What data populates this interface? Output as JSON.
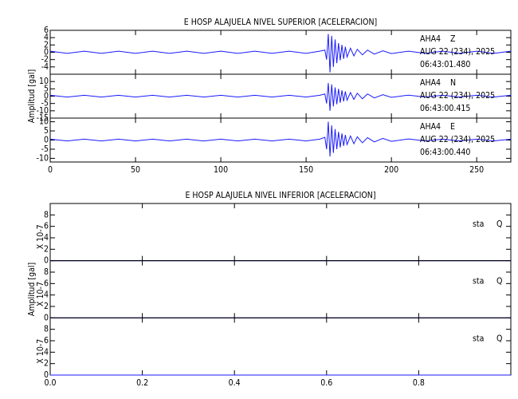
{
  "chart_data": [
    {
      "type": "seismogram",
      "title": "E HOSP ALAJUELA NIVEL SUPERIOR [ACELERACION]",
      "ylabel": "Amplitud [gal]",
      "xlim": [
        0,
        270
      ],
      "xticks": [
        0,
        50,
        100,
        150,
        200,
        250
      ],
      "panels": [
        {
          "station": "AHA4",
          "component": "Z",
          "date": "AUG 22 (234), 2025",
          "time": "06:43:01.480",
          "color": "#1a1aff",
          "ylim": [
            -6,
            6
          ],
          "yticks": [
            -4,
            -2,
            0,
            2,
            4,
            6
          ],
          "x": [
            0,
            10,
            20,
            30,
            40,
            50,
            60,
            70,
            80,
            90,
            100,
            110,
            120,
            130,
            140,
            150,
            158,
            161,
            162,
            163,
            164,
            165,
            166,
            167,
            168,
            169,
            170,
            171,
            172,
            173,
            174,
            176,
            178,
            180,
            183,
            186,
            190,
            195,
            200,
            210,
            220,
            230,
            240,
            250,
            260,
            270
          ],
          "values": [
            0.3,
            -0.3,
            0.3,
            -0.3,
            0.3,
            -0.3,
            0.3,
            -0.3,
            0.3,
            -0.3,
            0.3,
            -0.3,
            0.3,
            -0.3,
            0.3,
            -0.3,
            0.3,
            0.6,
            -2,
            5,
            -5.5,
            4.5,
            -4,
            3.5,
            -3,
            2.5,
            -2.2,
            2,
            -1.8,
            1.5,
            -1.3,
            1.1,
            -1,
            0.8,
            -0.7,
            0.6,
            -0.5,
            0.4,
            -0.35,
            0.3,
            -0.3,
            0.3,
            -0.3,
            0.3,
            -0.3,
            0.3
          ]
        },
        {
          "station": "AHA4",
          "component": "N",
          "date": "AUG 22 (234), 2025",
          "time": "06:43:00.415",
          "color": "#1a1aff",
          "ylim": [
            -15,
            15
          ],
          "yticks": [
            -15,
            -10,
            -5,
            0,
            5,
            10
          ],
          "x": [
            0,
            10,
            20,
            30,
            40,
            50,
            60,
            70,
            80,
            90,
            100,
            110,
            120,
            130,
            140,
            150,
            158,
            161,
            162,
            163,
            164,
            165,
            166,
            167,
            168,
            169,
            170,
            171,
            172,
            173,
            174,
            176,
            178,
            180,
            183,
            186,
            190,
            195,
            200,
            210,
            220,
            230,
            240,
            250,
            260,
            270
          ],
          "values": [
            0.6,
            -0.6,
            0.6,
            -0.6,
            0.6,
            -0.6,
            0.6,
            -0.6,
            0.6,
            -0.6,
            0.6,
            -0.6,
            0.6,
            -0.6,
            0.6,
            -0.6,
            0.6,
            1.5,
            -5,
            9,
            -10,
            8,
            -7,
            6,
            -5.5,
            5,
            -4.5,
            4,
            -3.6,
            3.2,
            -2.8,
            2.5,
            -2.2,
            2,
            -1.8,
            1.5,
            -1.2,
            1,
            -0.8,
            0.7,
            -0.6,
            0.6,
            -0.6,
            0.6,
            -0.6,
            0.6
          ]
        },
        {
          "station": "AHA4",
          "component": "E",
          "date": "AUG 22 (234), 2025",
          "time": "06:43:00.440",
          "color": "#1a1aff",
          "ylim": [
            -12,
            12
          ],
          "yticks": [
            -10,
            -5,
            0,
            5,
            10
          ],
          "x": [
            0,
            10,
            20,
            30,
            40,
            50,
            60,
            70,
            80,
            90,
            100,
            110,
            120,
            130,
            140,
            150,
            158,
            161,
            162,
            163,
            164,
            165,
            166,
            167,
            168,
            169,
            170,
            171,
            172,
            173,
            174,
            176,
            178,
            180,
            183,
            186,
            190,
            195,
            200,
            210,
            220,
            230,
            240,
            250,
            260,
            270
          ],
          "values": [
            0.5,
            -0.5,
            0.5,
            -0.5,
            0.5,
            -0.5,
            0.5,
            -0.5,
            0.5,
            -0.5,
            0.5,
            -0.5,
            0.5,
            -0.5,
            0.5,
            -0.5,
            0.5,
            1.5,
            -5,
            10,
            -9,
            8,
            -7,
            6,
            -5,
            4.5,
            -4,
            3.6,
            -3.2,
            2.8,
            -2.5,
            2.2,
            -2,
            1.8,
            -1.5,
            1.3,
            -1,
            0.9,
            -0.7,
            0.6,
            -0.5,
            0.5,
            -0.5,
            0.5,
            -0.5,
            0.5
          ]
        }
      ]
    },
    {
      "type": "seismogram",
      "title": "E HOSP ALAJUELA NIVEL INFERIOR [ACELERACION]",
      "ylabel": "Amplitud [gal]",
      "xlim": [
        0,
        1
      ],
      "xticks": [
        {
          "value": 0,
          "label": "0.0"
        },
        0.2,
        0.4,
        0.6,
        0.8
      ],
      "panels": [
        {
          "station": "sta",
          "component": "Q",
          "scale": "X 10-7",
          "color": "#1a1aff",
          "ylim": [
            0,
            10
          ],
          "yticks": [
            0,
            2,
            4,
            6,
            8
          ],
          "x": [
            0,
            1
          ],
          "values": [
            0,
            0
          ]
        },
        {
          "station": "sta",
          "component": "Q",
          "scale": "X 10-7",
          "color": "#1a1aff",
          "ylim": [
            0,
            10
          ],
          "yticks": [
            0,
            2,
            4,
            6,
            8
          ],
          "x": [
            0,
            1
          ],
          "values": [
            0,
            0
          ]
        },
        {
          "station": "sta",
          "component": "Q",
          "scale": "X 10-7",
          "color": "#1a1aff",
          "ylim": [
            0,
            10
          ],
          "yticks": [
            0,
            2,
            4,
            6,
            8
          ],
          "x": [
            0,
            1
          ],
          "values": [
            0,
            0
          ]
        }
      ]
    }
  ]
}
